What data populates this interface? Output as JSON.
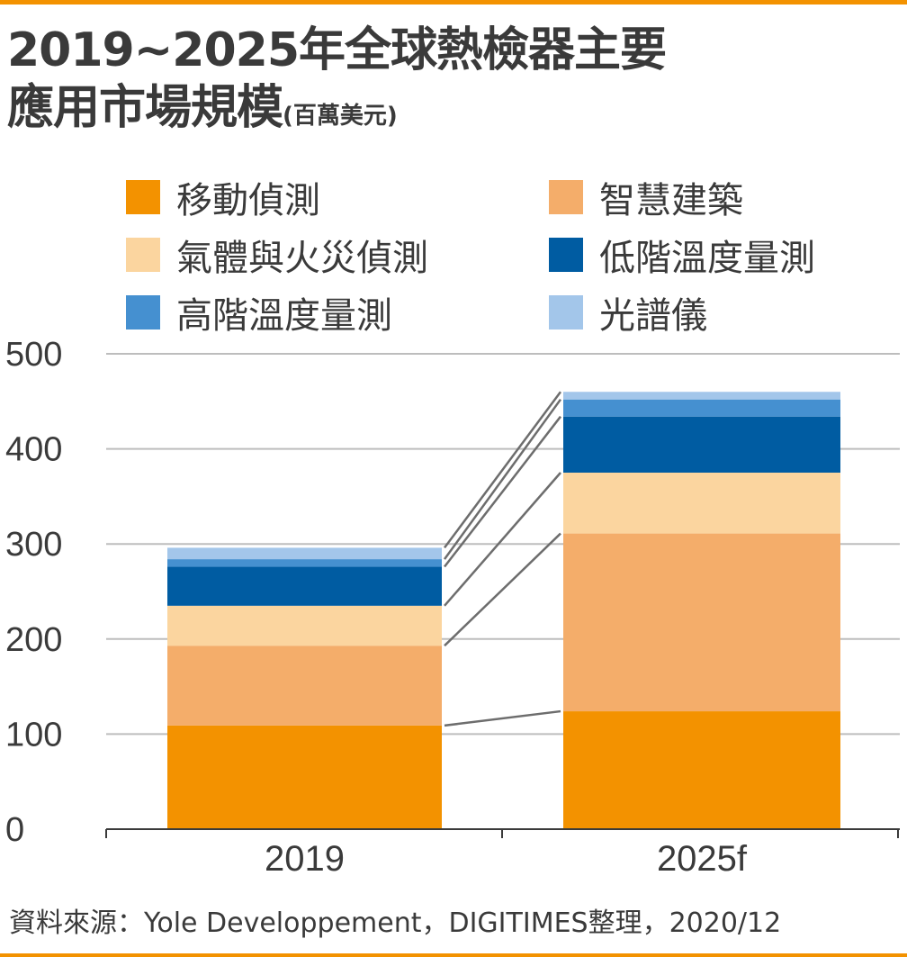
{
  "chart_data": {
    "type": "bar",
    "stacked": true,
    "title": "2019~2025年全球熱檢器主要應用市場規模",
    "title_line1": "2019~2025年全球熱檢器主要",
    "title_line2": "應用市場規模",
    "unit": "(百萬美元)",
    "categories": [
      "2019",
      "2025f"
    ],
    "series": [
      {
        "name": "移動偵測",
        "color": "#f39200",
        "values": [
          109,
          124
        ]
      },
      {
        "name": "智慧建築",
        "color": "#f4ad6a",
        "values": [
          84,
          187
        ]
      },
      {
        "name": "氣體與火災偵測",
        "color": "#fbd59f",
        "values": [
          42,
          64
        ]
      },
      {
        "name": "低階溫度量測",
        "color": "#005ca2",
        "values": [
          41,
          59
        ]
      },
      {
        "name": "高階溫度量測",
        "color": "#4590d0",
        "values": [
          8,
          18
        ]
      },
      {
        "name": "光譜儀",
        "color": "#a3c6ea",
        "values": [
          12,
          8
        ]
      }
    ],
    "ylim": [
      0,
      500
    ],
    "yticks": [
      "0",
      "100",
      "200",
      "300",
      "400",
      "500"
    ],
    "grid": true,
    "legend_placement": "top",
    "source": "資料來源：Yole Developpement，DIGITIMES整理，2020/12"
  }
}
